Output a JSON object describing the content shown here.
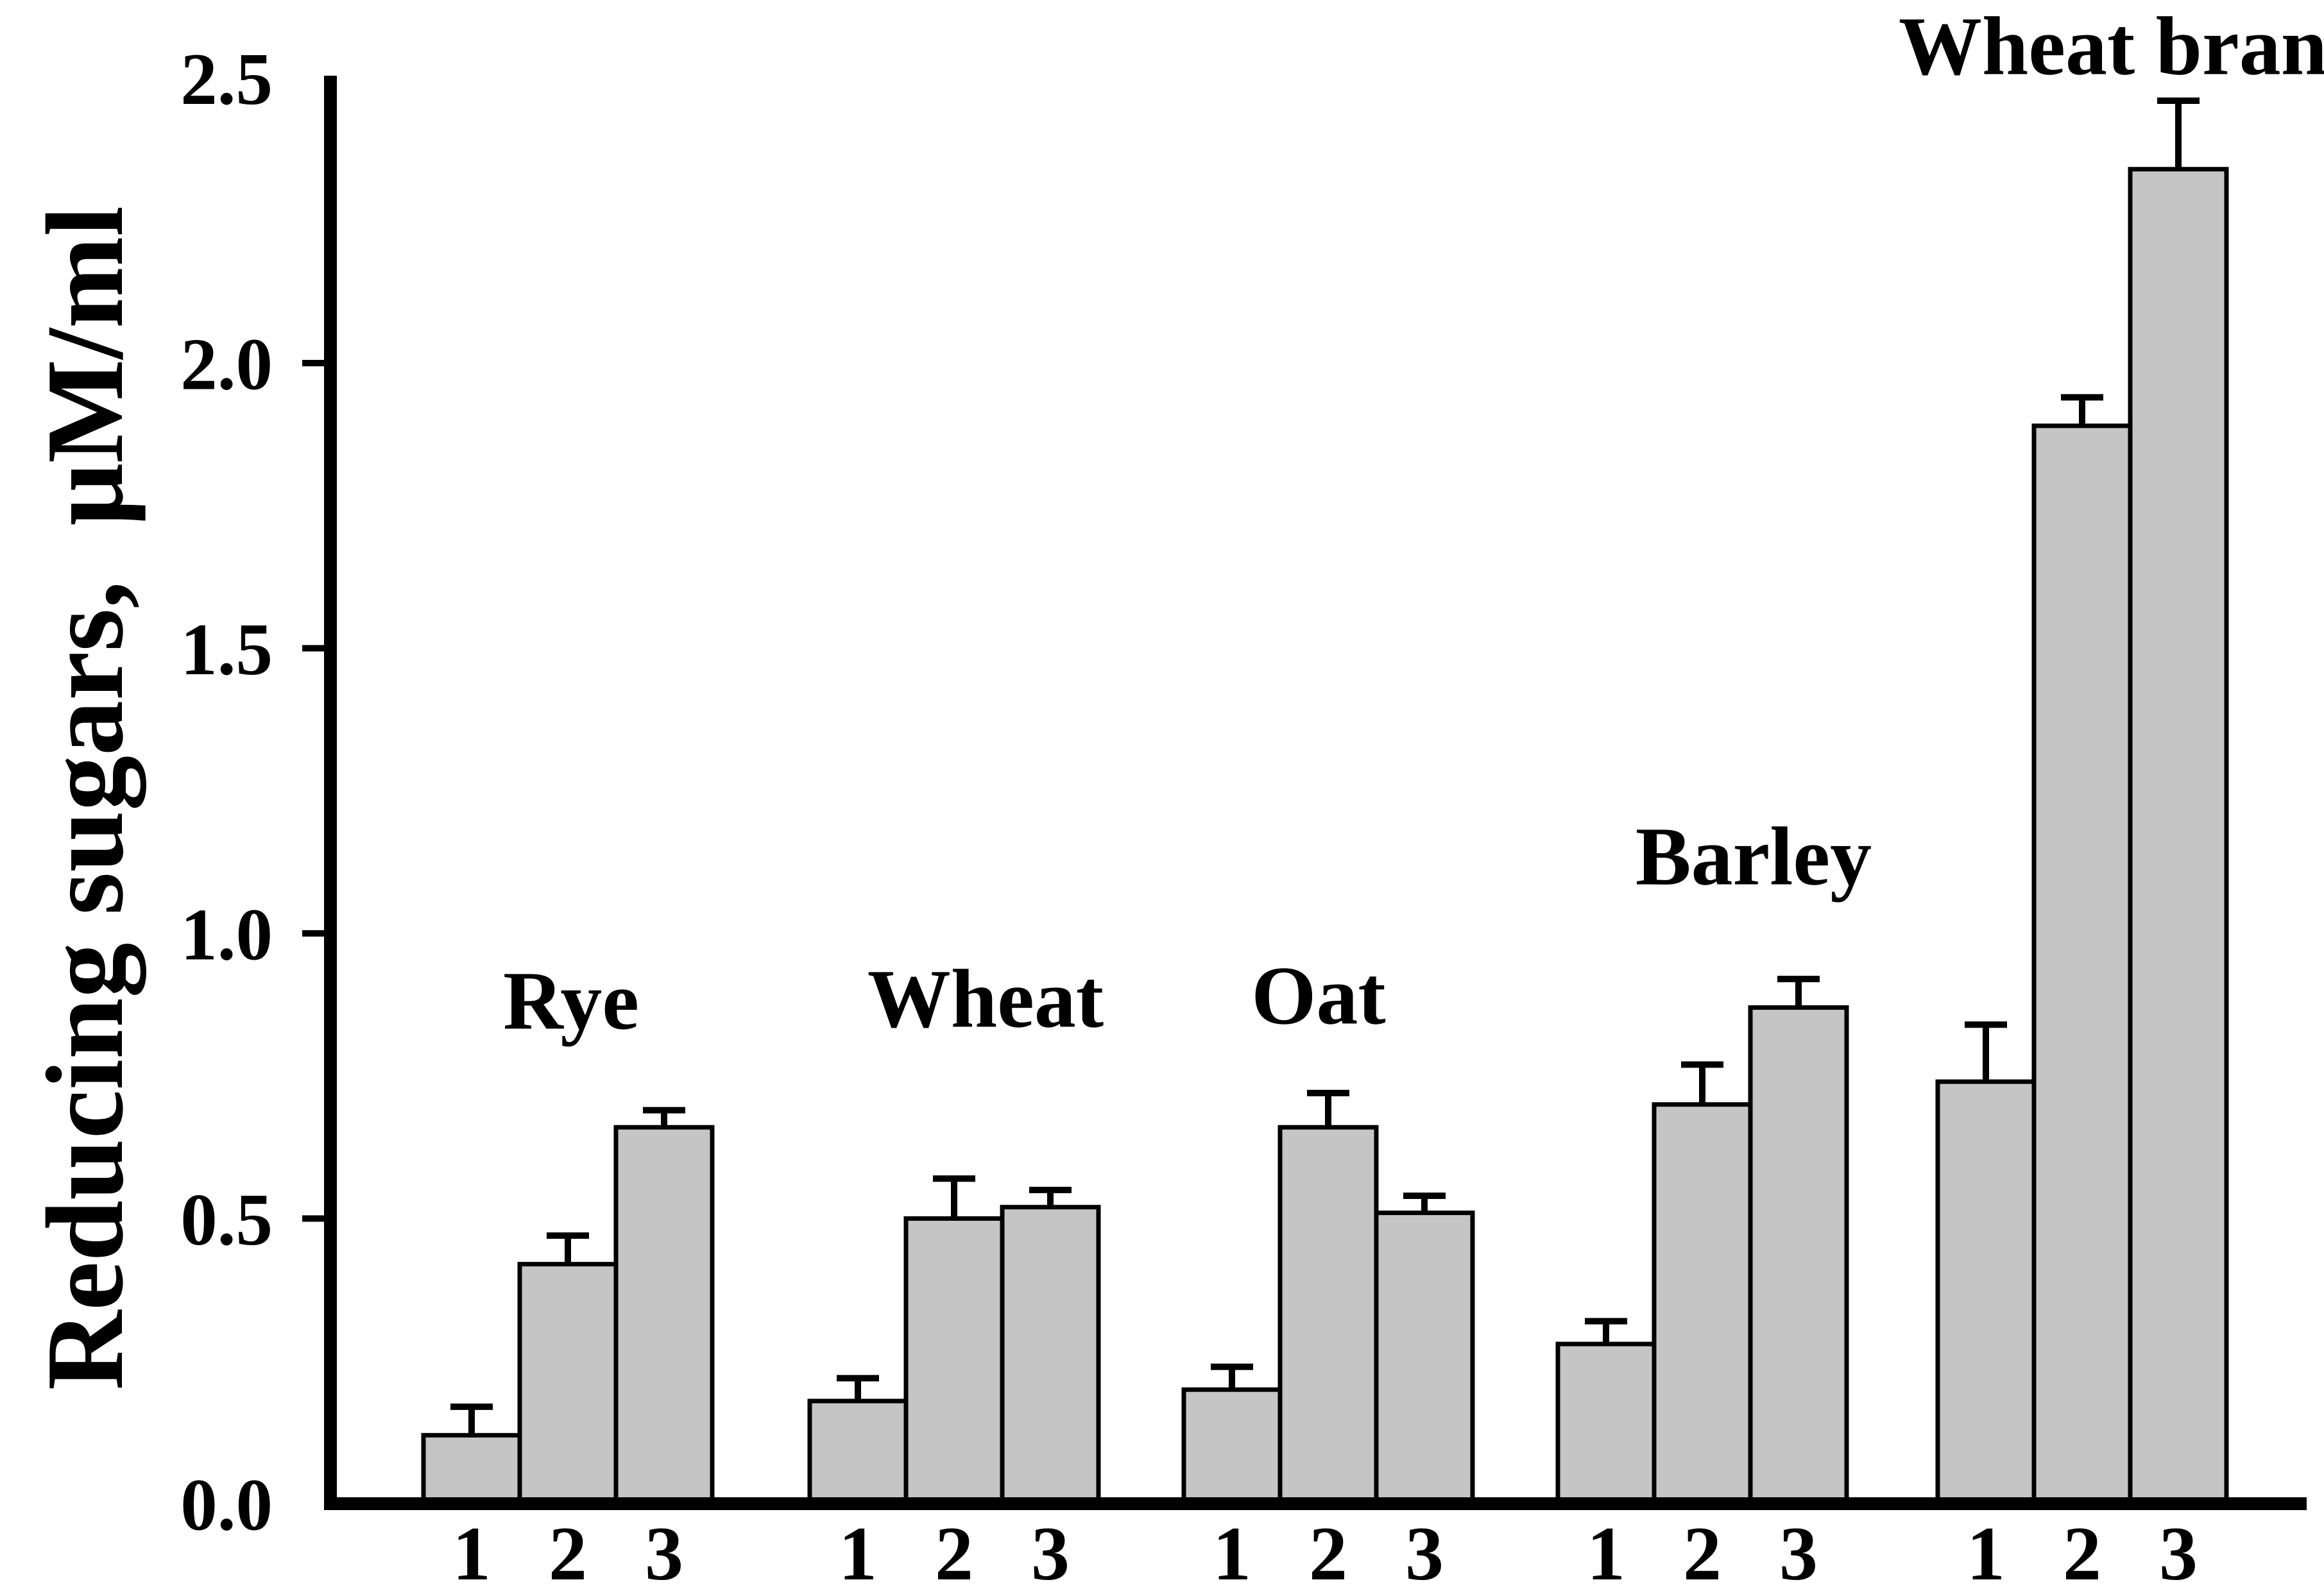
{
  "chart_data": {
    "type": "bar",
    "title": "",
    "xlabel": "",
    "ylabel": "Reducing sugars,  μM/ml",
    "ylim": [
      0.0,
      2.5
    ],
    "yticks": [
      0.0,
      0.5,
      1.0,
      1.5,
      2.0,
      2.5
    ],
    "ytick_labels": [
      "0.0",
      "0.5",
      "1.0",
      "1.5",
      "2.0",
      "2.5"
    ],
    "bar_labels": [
      "1",
      "2",
      "3"
    ],
    "groups": [
      {
        "name": "Rye",
        "values": [
          0.12,
          0.42,
          0.66
        ],
        "errors": [
          0.05,
          0.05,
          0.03
        ]
      },
      {
        "name": "Wheat",
        "values": [
          0.18,
          0.5,
          0.52
        ],
        "errors": [
          0.04,
          0.07,
          0.03
        ]
      },
      {
        "name": "Oat",
        "values": [
          0.2,
          0.66,
          0.51
        ],
        "errors": [
          0.04,
          0.06,
          0.03
        ]
      },
      {
        "name": "Barley",
        "values": [
          0.28,
          0.7,
          0.87
        ],
        "errors": [
          0.04,
          0.07,
          0.05
        ]
      },
      {
        "name": "Wheat bran",
        "values": [
          0.74,
          1.89,
          2.34
        ],
        "errors": [
          0.1,
          0.05,
          0.12
        ]
      }
    ],
    "error_bars": "upper-only",
    "grid": false,
    "legend": "none",
    "colors": {
      "bar_fill": "#c5c5c5",
      "bar_edge": "#000000",
      "axis": "#000000",
      "text": "#000000",
      "background": "#ffffff"
    }
  }
}
